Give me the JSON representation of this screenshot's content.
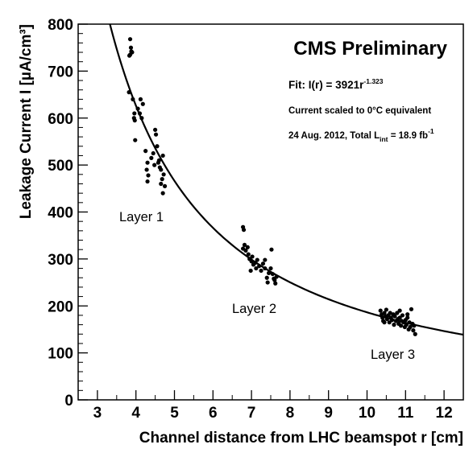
{
  "chart_data": {
    "type": "scatter",
    "title": "CMS Preliminary",
    "xlabel": "Channel distance from LHC beamspot r [cm]",
    "ylabel": "Leakage Current I [µA/cm³]",
    "xlim": [
      2.5,
      12.5
    ],
    "ylim": [
      0,
      800
    ],
    "x_ticks": [
      "3",
      "4",
      "5",
      "6",
      "7",
      "8",
      "9",
      "10",
      "11",
      "12"
    ],
    "y_ticks": [
      "0",
      "100",
      "200",
      "300",
      "400",
      "500",
      "600",
      "700",
      "800"
    ],
    "grid": false,
    "fit": {
      "label_prefix": "Fit: I(r) = 3921r",
      "exponent": "-1.323",
      "coefficient": 3921,
      "power": -1.323
    },
    "notes": {
      "scaling": "Current scaled to 0°C equivalent",
      "date_prefix": "24 Aug. 2012, Total L",
      "lumi_sub": "int",
      "lumi_value": " = 18.9 fb",
      "lumi_sup": "-1"
    },
    "layer_labels": [
      "Layer 1",
      "Layer 2",
      "Layer 3"
    ],
    "series": [
      {
        "points": [
          [
            3.85,
            768
          ],
          [
            3.87,
            750
          ],
          [
            3.88,
            742
          ],
          [
            3.85,
            735
          ],
          [
            3.83,
            733
          ],
          [
            3.9,
            740
          ],
          [
            3.82,
            655
          ],
          [
            3.92,
            640
          ],
          [
            3.96,
            610
          ],
          [
            3.95,
            600
          ],
          [
            3.97,
            595
          ],
          [
            4.05,
            620
          ],
          [
            4.1,
            610
          ],
          [
            4.15,
            600
          ],
          [
            4.12,
            640
          ],
          [
            4.18,
            630
          ],
          [
            3.98,
            553
          ],
          [
            4.25,
            530
          ],
          [
            4.3,
            505
          ],
          [
            4.28,
            490
          ],
          [
            4.32,
            478
          ],
          [
            4.3,
            465
          ],
          [
            4.4,
            515
          ],
          [
            4.45,
            525
          ],
          [
            4.48,
            500
          ],
          [
            4.5,
            575
          ],
          [
            4.52,
            565
          ],
          [
            4.55,
            540
          ],
          [
            4.6,
            510
          ],
          [
            4.62,
            495
          ],
          [
            4.65,
            490
          ],
          [
            4.7,
            520
          ],
          [
            4.72,
            480
          ],
          [
            4.68,
            470
          ],
          [
            4.65,
            460
          ],
          [
            4.75,
            455
          ],
          [
            4.7,
            440
          ],
          [
            4.58,
            505
          ]
        ]
      },
      {
        "points": [
          [
            6.78,
            368
          ],
          [
            6.8,
            362
          ],
          [
            6.82,
            330
          ],
          [
            6.78,
            322
          ],
          [
            6.85,
            318
          ],
          [
            6.9,
            325
          ],
          [
            6.92,
            310
          ],
          [
            6.95,
            300
          ],
          [
            7.0,
            295
          ],
          [
            7.02,
            305
          ],
          [
            7.05,
            288
          ],
          [
            7.1,
            292
          ],
          [
            7.12,
            280
          ],
          [
            7.15,
            298
          ],
          [
            7.2,
            285
          ],
          [
            7.25,
            275
          ],
          [
            7.3,
            290
          ],
          [
            7.35,
            280
          ],
          [
            7.4,
            260
          ],
          [
            7.42,
            250
          ],
          [
            7.45,
            270
          ],
          [
            7.5,
            280
          ],
          [
            7.55,
            268
          ],
          [
            7.52,
            320
          ],
          [
            7.58,
            258
          ],
          [
            7.6,
            255
          ],
          [
            7.62,
            248
          ],
          [
            7.65,
            262
          ],
          [
            7.35,
            298
          ],
          [
            6.98,
            275
          ]
        ]
      },
      {
        "points": [
          [
            10.35,
            190
          ],
          [
            10.38,
            182
          ],
          [
            10.4,
            175
          ],
          [
            10.42,
            168
          ],
          [
            10.45,
            185
          ],
          [
            10.48,
            178
          ],
          [
            10.5,
            192
          ],
          [
            10.52,
            172
          ],
          [
            10.55,
            180
          ],
          [
            10.58,
            165
          ],
          [
            10.6,
            185
          ],
          [
            10.62,
            175
          ],
          [
            10.65,
            170
          ],
          [
            10.68,
            182
          ],
          [
            10.7,
            160
          ],
          [
            10.72,
            178
          ],
          [
            10.75,
            168
          ],
          [
            10.78,
            185
          ],
          [
            10.8,
            172
          ],
          [
            10.82,
            162
          ],
          [
            10.85,
            175
          ],
          [
            10.88,
            158
          ],
          [
            10.9,
            168
          ],
          [
            10.92,
            180
          ],
          [
            10.95,
            165
          ],
          [
            10.98,
            155
          ],
          [
            11.0,
            170
          ],
          [
            11.02,
            160
          ],
          [
            11.05,
            175
          ],
          [
            11.08,
            150
          ],
          [
            11.1,
            165
          ],
          [
            11.12,
            155
          ],
          [
            11.15,
            193
          ],
          [
            11.18,
            162
          ],
          [
            11.2,
            148
          ],
          [
            11.22,
            158
          ],
          [
            11.25,
            140
          ],
          [
            11.05,
            182
          ],
          [
            10.45,
            165
          ],
          [
            10.85,
            190
          ]
        ]
      }
    ]
  }
}
